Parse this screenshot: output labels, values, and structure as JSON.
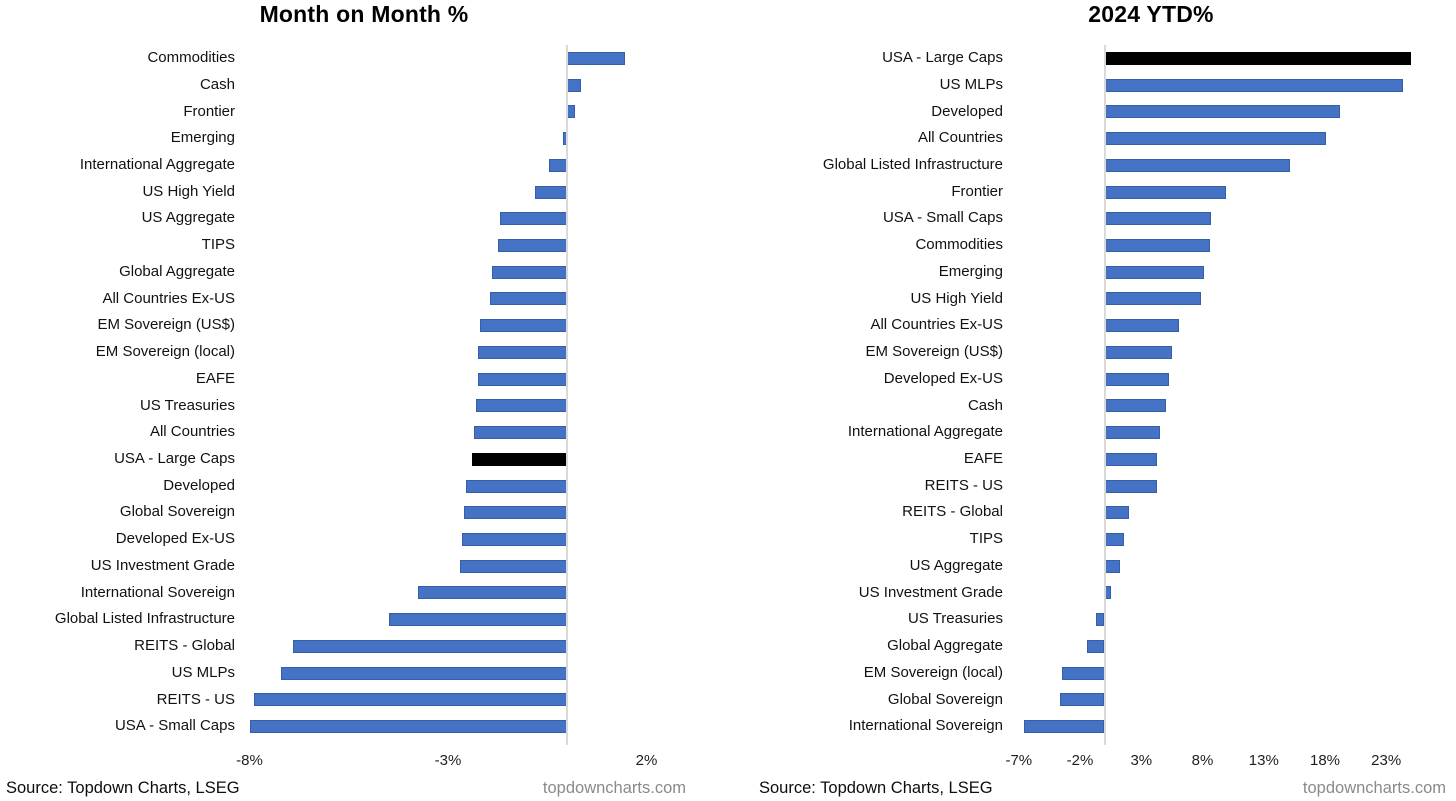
{
  "page": {
    "background_color": "#ffffff",
    "text_color": "#111111",
    "bar_color": "#4472C4",
    "highlight_color": "#000000",
    "axis_line_color": "#d9d9d9",
    "site_text_color": "#8a8a8a"
  },
  "chart_data": [
    {
      "type": "bar",
      "orientation": "horizontal",
      "title": "Month on Month %",
      "unit": "%",
      "bar_color": "#4472C4",
      "highlight_color": "#000000",
      "highlight_category": "USA - Large Caps",
      "grid": false,
      "legend": false,
      "xlim": [
        -8.24,
        2.29
      ],
      "xticks": [
        {
          "label": "-8%",
          "value": -8
        },
        {
          "label": "-3%",
          "value": -3
        },
        {
          "label": "2%",
          "value": 2
        }
      ],
      "categories": [
        "Commodities",
        "Cash",
        "Frontier",
        "Emerging",
        "International Aggregate",
        "US High Yield",
        "US Aggregate",
        "TIPS",
        "Global Aggregate",
        "All Countries Ex-US",
        "EM Sovereign (US$)",
        "EM Sovereign (local)",
        "EAFE",
        "US Treasuries",
        "All Countries",
        "USA - Large Caps",
        "Developed",
        "Global Sovereign",
        "Developed Ex-US",
        "US Investment Grade",
        "International Sovereign",
        "Global Listed Infrastructure",
        "REITS - Global",
        "US MLPs",
        "REITS - US",
        "USA - Small Caps"
      ],
      "values": [
        1.45,
        0.35,
        0.2,
        -0.1,
        -0.45,
        -0.8,
        -1.7,
        -1.75,
        -1.9,
        -1.95,
        -2.2,
        -2.25,
        -2.25,
        -2.3,
        -2.35,
        -2.4,
        -2.55,
        -2.6,
        -2.65,
        -2.7,
        -3.75,
        -4.5,
        -6.9,
        -7.2,
        -7.9,
        -8.0
      ],
      "footer": {
        "source": "Source: Topdown Charts, LSEG",
        "site": "topdowncharts.com"
      }
    },
    {
      "type": "bar",
      "orientation": "horizontal",
      "title": "2024 YTD%",
      "unit": "%",
      "bar_color": "#4472C4",
      "highlight_color": "#000000",
      "highlight_category": "USA - Large Caps",
      "grid": false,
      "legend": false,
      "xlim": [
        -7.88,
        27.96
      ],
      "xticks": [
        {
          "label": "-7%",
          "value": -7
        },
        {
          "label": "-2%",
          "value": -2
        },
        {
          "label": "3%",
          "value": 3
        },
        {
          "label": "8%",
          "value": 8
        },
        {
          "label": "13%",
          "value": 13
        },
        {
          "label": "18%",
          "value": 18
        },
        {
          "label": "23%",
          "value": 23
        }
      ],
      "categories": [
        "USA - Large Caps",
        "US MLPs",
        "Developed",
        "All Countries",
        "Global Listed Infrastructure",
        "Frontier",
        "USA - Small Caps",
        "Commodities",
        "Emerging",
        "US High Yield",
        "All Countries Ex-US",
        "EM Sovereign (US$)",
        "Developed Ex-US",
        "Cash",
        "International Aggregate",
        "EAFE",
        "REITS - US",
        "REITS - Global",
        "TIPS",
        "US Aggregate",
        "US Investment Grade",
        "US Treasuries",
        "Global Aggregate",
        "EM Sovereign (local)",
        "Global Sovereign",
        "International Sovereign"
      ],
      "values": [
        25.0,
        24.4,
        19.2,
        18.1,
        15.1,
        9.9,
        8.7,
        8.6,
        8.1,
        7.9,
        6.1,
        5.5,
        5.3,
        5.0,
        4.5,
        4.3,
        4.3,
        2.0,
        1.6,
        1.3,
        0.5,
        -0.7,
        -1.4,
        -3.5,
        -3.6,
        -6.6
      ],
      "footer": {
        "source": "Source: Topdown Charts, LSEG",
        "site": "topdowncharts.com"
      }
    }
  ]
}
